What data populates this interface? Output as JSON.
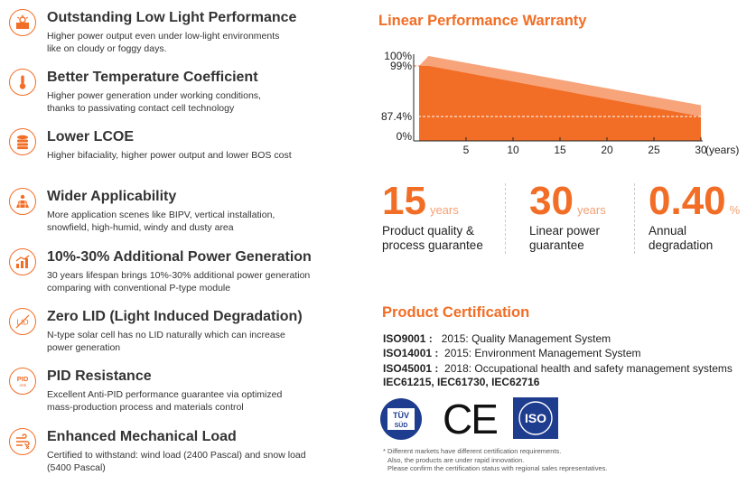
{
  "colors": {
    "accent": "#f26d25",
    "accent_light": "#f4a074",
    "text": "#222222"
  },
  "features": [
    {
      "icon": "sun-icon",
      "title": "Outstanding Low Light Performance",
      "desc1": "Higher power output even under low-light environments",
      "desc2": "like on cloudy or foggy days."
    },
    {
      "icon": "thermometer-icon",
      "title": "Better Temperature Coefficient",
      "desc1": "Higher power generation under working conditions,",
      "desc2": "thanks to passivating contact cell technology"
    },
    {
      "icon": "coins-icon",
      "title": "Lower LCOE",
      "desc1": "Higher bifaciality, higher power output and lower BOS cost",
      "desc2": ""
    },
    {
      "icon": "solar-panel-icon",
      "title": "Wider Applicability",
      "desc1": "More application scenes like BIPV, vertical installation,",
      "desc2": "snowfield, high-humid, windy and dusty area"
    },
    {
      "icon": "power-chart-icon",
      "title": "10%-30% Additional Power Generation",
      "desc1": "30 years lifespan brings 10%-30% additional power generation",
      "desc2": "comparing with conventional P-type module"
    },
    {
      "icon": "lid-icon",
      "title": "Zero LID (Light Induced Degradation)",
      "desc1": "N-type solar cell has no LID naturally which can increase",
      "desc2": "power generation"
    },
    {
      "icon": "pid-icon",
      "title": "PID Resistance",
      "desc1": "Excellent Anti-PID performance guarantee via optimized",
      "desc2": "mass-production process and materials control"
    },
    {
      "icon": "wind-snow-icon",
      "title": "Enhanced Mechanical Load",
      "desc1": "Certified to withstand: wind load (2400 Pascal) and snow load",
      "desc2": " (5400 Pascal)"
    }
  ],
  "warranty": {
    "title": "Linear Performance Warranty"
  },
  "chart_data": {
    "type": "area",
    "title": "Linear Performance Warranty",
    "y_ticks": [
      "100%",
      "99%",
      "87.4%",
      "0%"
    ],
    "y_tick_values": [
      100,
      99,
      87.4,
      0
    ],
    "x_ticks": [
      5,
      10,
      15,
      20,
      25,
      30
    ],
    "x_unit": "(years)",
    "xlim": [
      0,
      30
    ],
    "ylim": [
      0,
      100
    ],
    "series": [
      {
        "name": "warranty-upper",
        "x": [
          0,
          1,
          30
        ],
        "y": [
          99,
          100,
          90
        ]
      },
      {
        "name": "warranty-guaranteed",
        "x": [
          0,
          1,
          30
        ],
        "y": [
          99,
          99,
          87.4
        ]
      }
    ]
  },
  "stats": [
    {
      "value": "15",
      "unit": "years",
      "label1": "Product quality &",
      "label2": "process guarantee"
    },
    {
      "value": "30",
      "unit": "years",
      "label1": "Linear power",
      "label2": "guarantee"
    },
    {
      "value": "0.40",
      "unit": "%",
      "label1": "Annual",
      "label2": "degradation"
    }
  ],
  "certification": {
    "title": "Product Certification",
    "lines": [
      {
        "code": "ISO9001 :",
        "text": "2015: Quality Management System"
      },
      {
        "code": "ISO14001 :",
        "text": "2015: Environment Management System"
      },
      {
        "code": "ISO45001 :",
        "text": "2018: Occupational health and safety management systems"
      }
    ],
    "iec": "IEC61215, IEC61730, IEC62716",
    "logos": {
      "tuv_top": "TÜV",
      "tuv_bottom": "SÜD",
      "ce": "CE",
      "iso": "ISO"
    },
    "notes": [
      "* Different markets have different certification requirements.",
      "  Also, the products are under rapid innovation.",
      "  Please confirm the certification status with regional sales representatives."
    ]
  }
}
